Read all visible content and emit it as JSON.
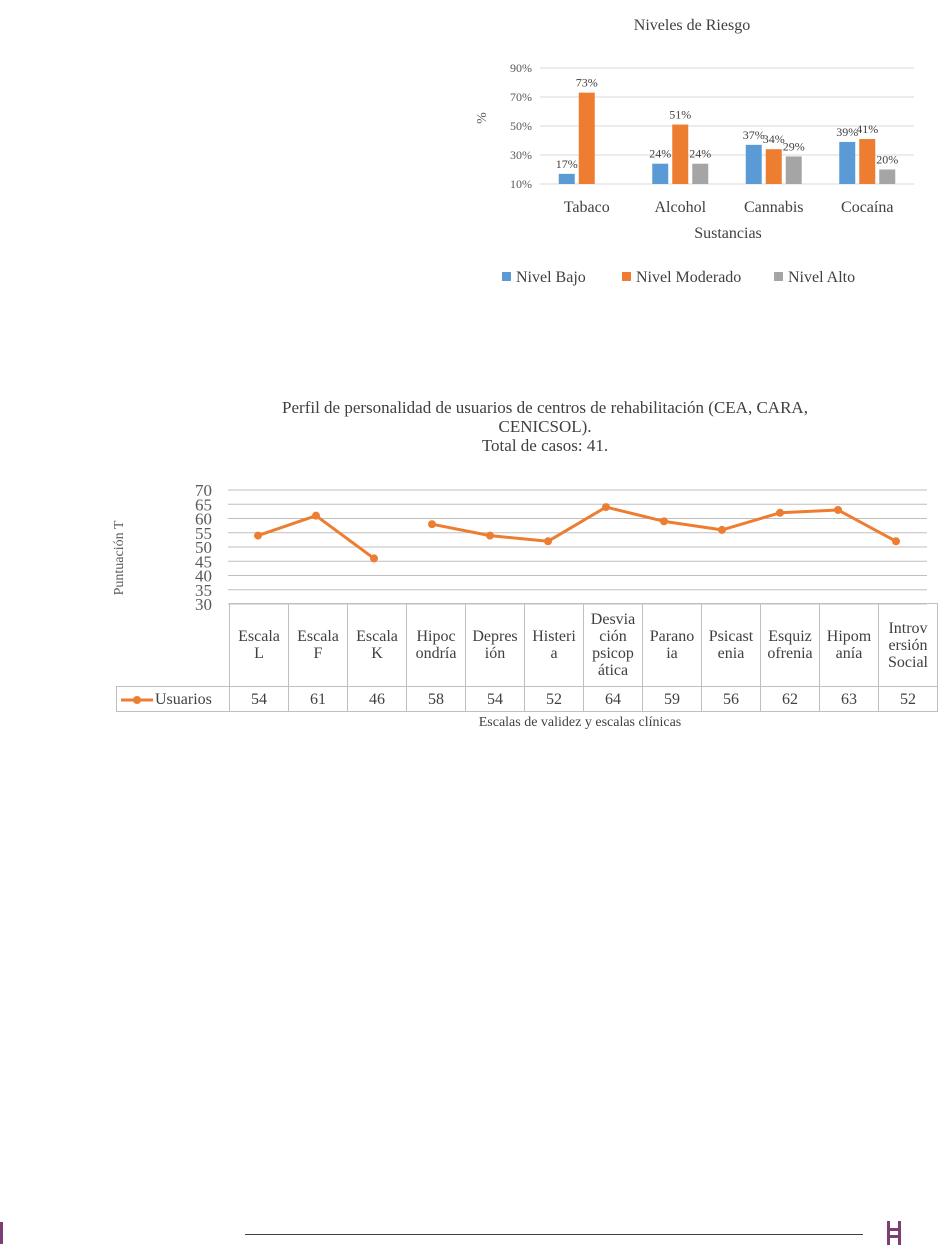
{
  "chart_data": [
    {
      "type": "bar",
      "title": "Niveles  de Riesgo",
      "xlabel": "Sustancias",
      "ylabel": "%",
      "ylim": [
        10,
        90
      ],
      "yticks": [
        "10%",
        "30%",
        "50%",
        "70%",
        "90%"
      ],
      "categories": [
        "Tabaco",
        "Alcohol",
        "Cannabis",
        "Cocaína"
      ],
      "series": [
        {
          "name": "Nivel Bajo",
          "color": "#5b9bd5",
          "values": [
            17,
            24,
            37,
            39
          ],
          "labels": [
            "17%",
            "24%",
            "37%",
            "39%"
          ]
        },
        {
          "name": "Nivel Moderado",
          "color": "#ed7d31",
          "values": [
            73,
            51,
            34,
            41
          ],
          "labels": [
            "73%",
            "51%",
            "34%",
            "41%"
          ]
        },
        {
          "name": "Nivel Alto",
          "color": "#a5a5a5",
          "values": [
            null,
            24,
            29,
            20
          ],
          "labels": [
            "",
            "24%",
            "29%",
            "20%"
          ]
        }
      ],
      "grid": true,
      "legend": "bottom"
    },
    {
      "type": "line",
      "title_lines": [
        "Perfil  de personalidad  de usuarios  de centros de rehabilitación  (CEA,  CARA,",
        "CENICSOL).",
        "Total  de casos: 41."
      ],
      "xlabel": "Escalas de validez y escalas clínicas",
      "ylabel": "Puntuación T",
      "ylim": [
        30,
        70
      ],
      "yticks": [
        "30",
        "35",
        "40",
        "45",
        "50",
        "55",
        "60",
        "65",
        "70"
      ],
      "categories": [
        "Escala\nL",
        "Escala\nF",
        "Escala\nK",
        "Hipoc\nondría",
        "Depres\nión",
        "Histeri\na",
        "Desvia\nción\npsicop\nática",
        "Parano\nia",
        "Psicast\nenia",
        "Esquiz\nofrenia",
        "Hipom\nanía",
        "Introv\nersión\nSocial"
      ],
      "series": [
        {
          "name": "Usuarios",
          "color": "#ed7d31",
          "values": [
            54,
            61,
            46,
            58,
            54,
            52,
            64,
            59,
            56,
            62,
            63,
            52
          ]
        }
      ],
      "grid": true,
      "legend": "data-table"
    }
  ]
}
